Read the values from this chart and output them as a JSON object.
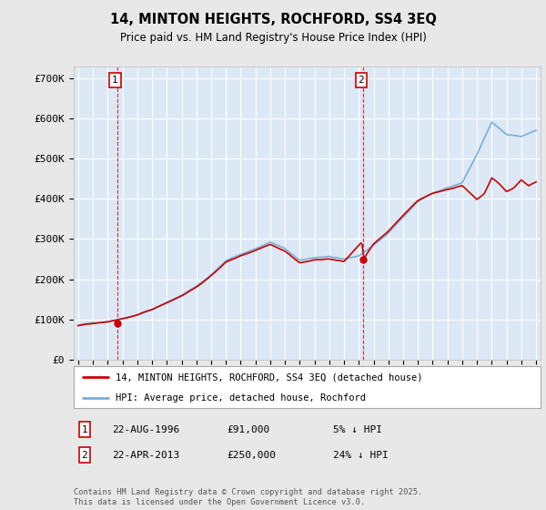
{
  "title": "14, MINTON HEIGHTS, ROCHFORD, SS4 3EQ",
  "subtitle": "Price paid vs. HM Land Registry's House Price Index (HPI)",
  "ylabel_ticks": [
    "£0",
    "£100K",
    "£200K",
    "£300K",
    "£400K",
    "£500K",
    "£600K",
    "£700K"
  ],
  "ytick_vals": [
    0,
    100000,
    200000,
    300000,
    400000,
    500000,
    600000,
    700000
  ],
  "ylim": [
    0,
    730000
  ],
  "xlim_start": 1993.7,
  "xlim_end": 2025.3,
  "sale1_date": 1996.644,
  "sale1_price": 91000,
  "sale2_date": 2013.308,
  "sale2_price": 250000,
  "line_color_price": "#cc0000",
  "line_color_hpi": "#7aafd4",
  "background_color": "#e8e8e8",
  "plot_bg_color": "#dce8f5",
  "legend_label_price": "14, MINTON HEIGHTS, ROCHFORD, SS4 3EQ (detached house)",
  "legend_label_hpi": "HPI: Average price, detached house, Rochford",
  "annotation1_label": "1",
  "annotation1_date": "22-AUG-1996",
  "annotation1_price": "£91,000",
  "annotation1_hpi": "5% ↓ HPI",
  "annotation2_label": "2",
  "annotation2_date": "22-APR-2013",
  "annotation2_price": "£250,000",
  "annotation2_hpi": "24% ↓ HPI",
  "footer": "Contains HM Land Registry data © Crown copyright and database right 2025.\nThis data is licensed under the Open Government Licence v3.0."
}
